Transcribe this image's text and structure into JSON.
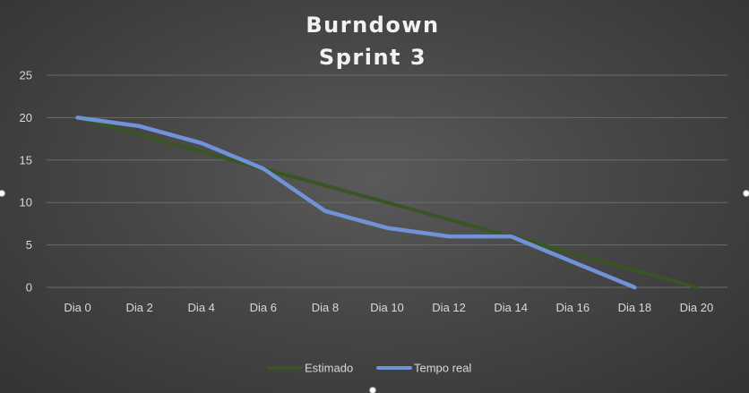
{
  "chart_data": {
    "type": "line",
    "title": [
      "Burndown",
      "Sprint 3"
    ],
    "categories": [
      "Dia 0",
      "Dia 2",
      "Dia 4",
      "Dia 6",
      "Dia 8",
      "Dia 10",
      "Dia 12",
      "Dia 14",
      "Dia 16",
      "Dia 18",
      "Dia 20"
    ],
    "x": [
      0,
      1,
      2,
      3,
      4,
      5,
      6,
      7,
      8,
      9,
      10
    ],
    "yticks": [
      "0",
      "5",
      "10",
      "15",
      "20",
      "25"
    ],
    "ylim": [
      0,
      25
    ],
    "grid": true,
    "legend_position": "bottom",
    "series": [
      {
        "name": "Estimado",
        "color": "#375623",
        "values": [
          20,
          18,
          16,
          14,
          12,
          10,
          8,
          6,
          4,
          2,
          0
        ]
      },
      {
        "name": "Tempo real",
        "color": "#6f93d6",
        "values": [
          20,
          19,
          17,
          14,
          9,
          7,
          6,
          6,
          3,
          0,
          null
        ]
      }
    ]
  }
}
